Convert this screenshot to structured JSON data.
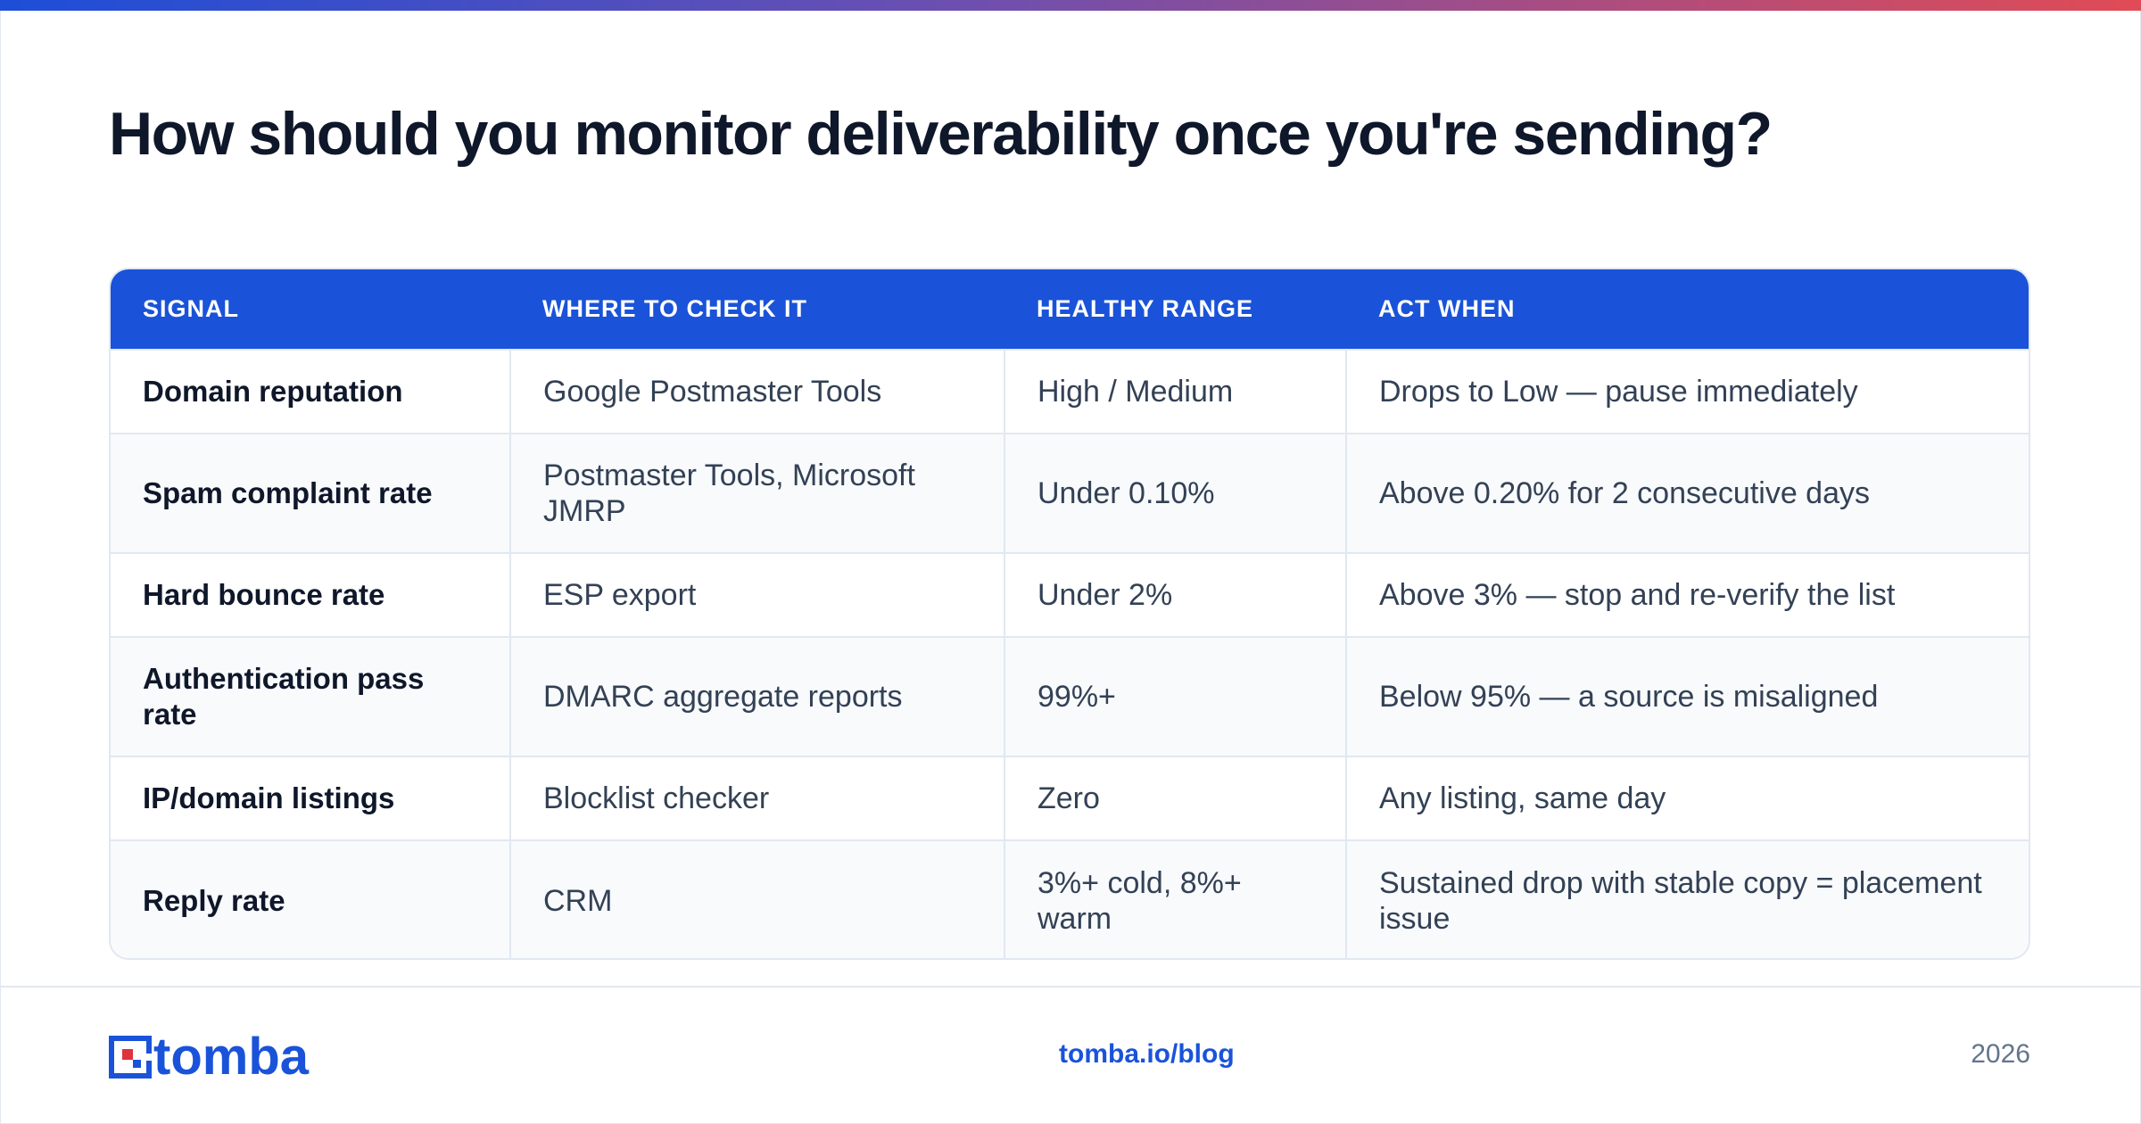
{
  "title": "How should you monitor deliverability once you're sending?",
  "table": {
    "headers": [
      "SIGNAL",
      "WHERE TO CHECK IT",
      "HEALTHY RANGE",
      "ACT WHEN"
    ],
    "rows": [
      [
        "Domain reputation",
        "Google Postmaster Tools",
        "High / Medium",
        "Drops to Low — pause immediately"
      ],
      [
        "Spam complaint rate",
        "Postmaster Tools, Microsoft JMRP",
        "Under 0.10%",
        "Above 0.20% for 2 consecutive days"
      ],
      [
        "Hard bounce rate",
        "ESP export",
        "Under 2%",
        "Above 3% — stop and re-verify the list"
      ],
      [
        "Authentication pass rate",
        "DMARC aggregate reports",
        "99%+",
        "Below 95% — a source is misaligned"
      ],
      [
        "IP/domain listings",
        "Blocklist checker",
        "Zero",
        "Any listing, same day"
      ],
      [
        "Reply rate",
        "CRM",
        "3%+ cold, 8%+ warm",
        "Sustained drop with stable copy = placement issue"
      ]
    ]
  },
  "footer": {
    "logo_text": "tomba",
    "link": "tomba.io/blog",
    "year": "2026"
  },
  "colors": {
    "accent": "#1a53d9",
    "logo_red": "#e0323b",
    "gradient_start": "#1d4ed8",
    "gradient_end": "#e14b55"
  }
}
